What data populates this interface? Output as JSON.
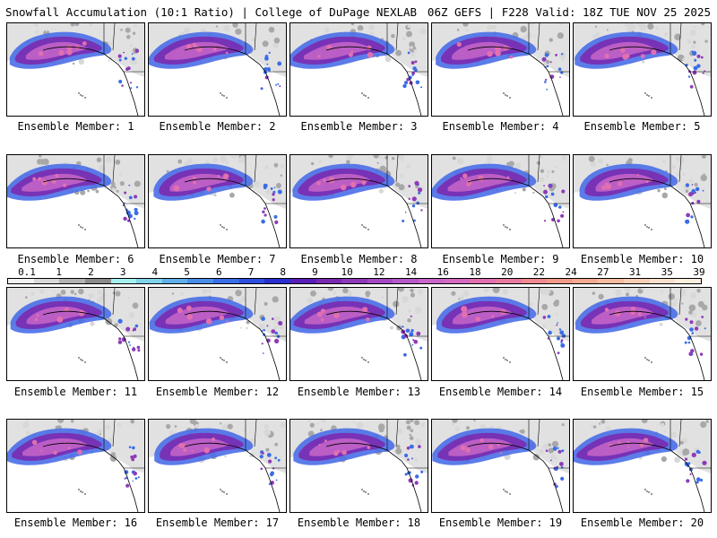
{
  "header": {
    "title_left": "Snowfall Accumulation (10:1 Ratio) | College of DuPage NEXLAB",
    "title_right": "06Z GEFS | F228 Valid: 18Z TUE NOV 25 2025"
  },
  "members": [
    {
      "label": "Ensemble Member: 1"
    },
    {
      "label": "Ensemble Member: 2"
    },
    {
      "label": "Ensemble Member: 3"
    },
    {
      "label": "Ensemble Member: 4"
    },
    {
      "label": "Ensemble Member: 5"
    },
    {
      "label": "Ensemble Member: 6"
    },
    {
      "label": "Ensemble Member: 7"
    },
    {
      "label": "Ensemble Member: 8"
    },
    {
      "label": "Ensemble Member: 9"
    },
    {
      "label": "Ensemble Member: 10"
    },
    {
      "label": "Ensemble Member: 11"
    },
    {
      "label": "Ensemble Member: 12"
    },
    {
      "label": "Ensemble Member: 13"
    },
    {
      "label": "Ensemble Member: 14"
    },
    {
      "label": "Ensemble Member: 15"
    },
    {
      "label": "Ensemble Member: 16"
    },
    {
      "label": "Ensemble Member: 17"
    },
    {
      "label": "Ensemble Member: 18"
    },
    {
      "label": "Ensemble Member: 19"
    },
    {
      "label": "Ensemble Member: 20"
    }
  ],
  "colorbar": {
    "labels": [
      "0.1",
      "1",
      "2",
      "3",
      "4",
      "5",
      "6",
      "7",
      "8",
      "9",
      "10",
      "12",
      "14",
      "16",
      "18",
      "20",
      "22",
      "24",
      "27",
      "31",
      "35",
      "39"
    ],
    "colors": [
      "#f2f2f2",
      "#d9d9d9",
      "#b3b3b3",
      "#8c8c8c",
      "#a6f0f0",
      "#7fd3ea",
      "#5fb0e8",
      "#4a8ee8",
      "#3a6de6",
      "#2c4fe0",
      "#2a2fd0",
      "#5a1fb8",
      "#7a2ab0",
      "#8e3ab8",
      "#a34ac2",
      "#b55ac8",
      "#c766c8",
      "#d66ac0",
      "#e070b0",
      "#e87aa0",
      "#ee8a90",
      "#f29a88",
      "#f4aa90",
      "#f6bca0",
      "#f8ceb4",
      "#fae0cc",
      "#fceede"
    ]
  }
}
